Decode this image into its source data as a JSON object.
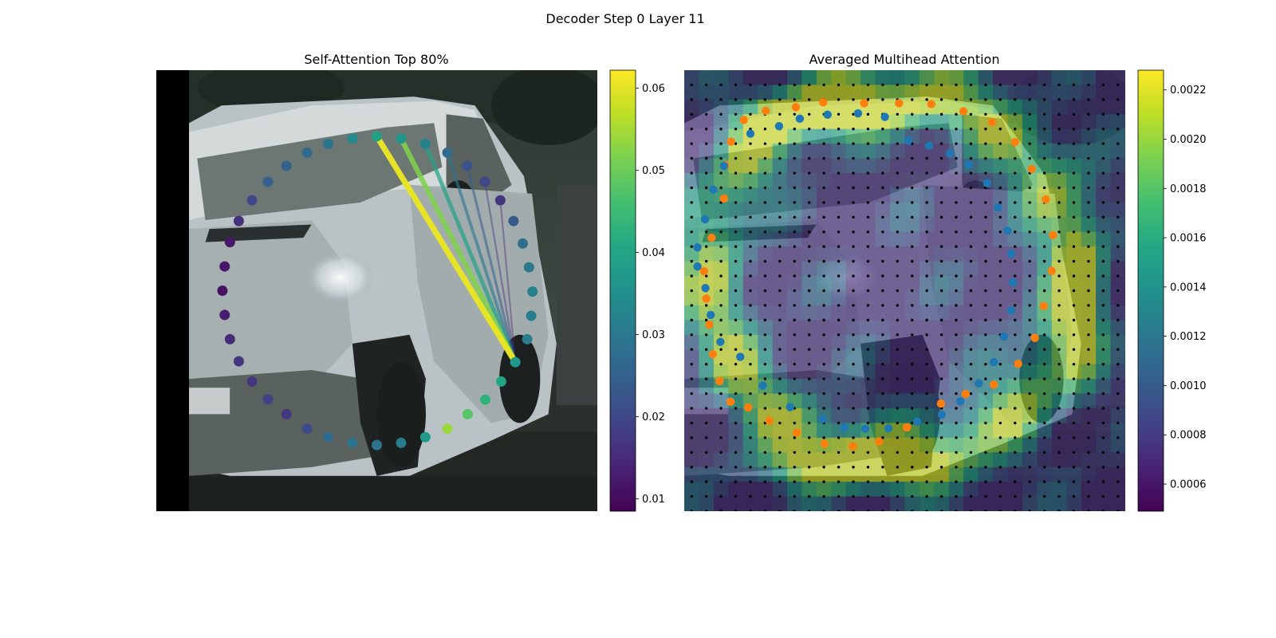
{
  "figure": {
    "suptitle": "Decoder Step 0 Layer 11"
  },
  "colormap": "viridis",
  "colors": {
    "orange_points": "#ff7f0e",
    "blue_points": "#1f77b4",
    "grid_dots": "#000000",
    "letterbox": "#000000"
  },
  "chart_data": [
    {
      "type": "scatter",
      "title": "Self-Attention Top 80%",
      "background": "dashcam photo of a white van, left side black letterbox",
      "axes_visible": false,
      "colorbar": {
        "range": [
          0.0085,
          0.0622
        ],
        "ticks": [
          0.01,
          0.02,
          0.03,
          0.04,
          0.05,
          0.06
        ],
        "tick_labels": [
          "0.01",
          "0.02",
          "0.03",
          "0.04",
          "0.05",
          "0.06"
        ]
      },
      "query_point_index": 13,
      "points": [
        {
          "u": 0.5,
          "v": 0.15,
          "w": 0.039
        },
        {
          "u": 0.555,
          "v": 0.155,
          "w": 0.036
        },
        {
          "u": 0.61,
          "v": 0.167,
          "w": 0.032
        },
        {
          "u": 0.66,
          "v": 0.187,
          "w": 0.027
        },
        {
          "u": 0.705,
          "v": 0.217,
          "w": 0.022
        },
        {
          "u": 0.745,
          "v": 0.253,
          "w": 0.02
        },
        {
          "u": 0.78,
          "v": 0.295,
          "w": 0.017
        },
        {
          "u": 0.81,
          "v": 0.342,
          "w": 0.024
        },
        {
          "u": 0.831,
          "v": 0.393,
          "w": 0.028
        },
        {
          "u": 0.845,
          "v": 0.447,
          "w": 0.03
        },
        {
          "u": 0.853,
          "v": 0.502,
          "w": 0.032
        },
        {
          "u": 0.85,
          "v": 0.557,
          "w": 0.031
        },
        {
          "u": 0.841,
          "v": 0.61,
          "w": 0.031
        },
        {
          "u": 0.814,
          "v": 0.662,
          "w": 0.037
        },
        {
          "u": 0.782,
          "v": 0.706,
          "w": 0.04
        },
        {
          "u": 0.746,
          "v": 0.747,
          "w": 0.043
        },
        {
          "u": 0.706,
          "v": 0.78,
          "w": 0.048
        },
        {
          "u": 0.66,
          "v": 0.813,
          "w": 0.054
        },
        {
          "u": 0.61,
          "v": 0.832,
          "w": 0.037
        },
        {
          "u": 0.555,
          "v": 0.845,
          "w": 0.031
        },
        {
          "u": 0.5,
          "v": 0.85,
          "w": 0.029
        },
        {
          "u": 0.445,
          "v": 0.845,
          "w": 0.029
        },
        {
          "u": 0.39,
          "v": 0.832,
          "w": 0.027
        },
        {
          "u": 0.342,
          "v": 0.813,
          "w": 0.02
        },
        {
          "u": 0.295,
          "v": 0.78,
          "w": 0.017
        },
        {
          "u": 0.253,
          "v": 0.746,
          "w": 0.019
        },
        {
          "u": 0.217,
          "v": 0.706,
          "w": 0.017
        },
        {
          "u": 0.187,
          "v": 0.66,
          "w": 0.017
        },
        {
          "u": 0.167,
          "v": 0.61,
          "w": 0.015
        },
        {
          "u": 0.155,
          "v": 0.555,
          "w": 0.013
        },
        {
          "u": 0.15,
          "v": 0.5,
          "w": 0.011
        },
        {
          "u": 0.155,
          "v": 0.445,
          "w": 0.012
        },
        {
          "u": 0.167,
          "v": 0.39,
          "w": 0.012
        },
        {
          "u": 0.187,
          "v": 0.342,
          "w": 0.016
        },
        {
          "u": 0.217,
          "v": 0.295,
          "w": 0.02
        },
        {
          "u": 0.253,
          "v": 0.253,
          "w": 0.025
        },
        {
          "u": 0.295,
          "v": 0.217,
          "w": 0.025
        },
        {
          "u": 0.342,
          "v": 0.187,
          "w": 0.027
        },
        {
          "u": 0.39,
          "v": 0.167,
          "w": 0.029
        },
        {
          "u": 0.445,
          "v": 0.155,
          "w": 0.034
        }
      ],
      "links": [
        {
          "to": 0,
          "w": 0.0605
        },
        {
          "to": 1,
          "w": 0.052
        },
        {
          "to": 2,
          "w": 0.039
        },
        {
          "to": 3,
          "w": 0.03
        },
        {
          "to": 4,
          "w": 0.024
        },
        {
          "to": 5,
          "w": 0.016
        },
        {
          "to": 6,
          "w": 0.014
        }
      ]
    },
    {
      "type": "heatmap",
      "title": "Averaged Multihead Attention",
      "background": "same dashcam photo of a white van under a semi-transparent heatmap",
      "axes_visible": false,
      "grid_size": [
        30,
        30
      ],
      "colorbar": {
        "range": [
          0.00049,
          0.00228
        ],
        "ticks": [
          0.0006,
          0.0008,
          0.001,
          0.0012,
          0.0014,
          0.0016,
          0.0018,
          0.002,
          0.0022
        ],
        "tick_labels": [
          "0.0006",
          "0.0008",
          "0.0010",
          "0.0012",
          "0.0014",
          "0.0016",
          "0.0018",
          "0.0020",
          "0.0022"
        ]
      },
      "series": [
        {
          "color": "#ff7f0e",
          "points": [
            [
              0.487,
              0.075
            ],
            [
              0.56,
              0.077
            ],
            [
              0.633,
              0.093
            ],
            [
              0.698,
              0.118
            ],
            [
              0.75,
              0.163
            ],
            [
              0.788,
              0.224
            ],
            [
              0.82,
              0.293
            ],
            [
              0.836,
              0.374
            ],
            [
              0.833,
              0.455
            ],
            [
              0.815,
              0.535
            ],
            [
              0.795,
              0.607
            ],
            [
              0.757,
              0.666
            ],
            [
              0.702,
              0.713
            ],
            [
              0.638,
              0.734
            ],
            [
              0.582,
              0.756
            ],
            [
              0.505,
              0.81
            ],
            [
              0.442,
              0.842
            ],
            [
              0.382,
              0.853
            ],
            [
              0.318,
              0.847
            ],
            [
              0.255,
              0.822
            ],
            [
              0.193,
              0.795
            ],
            [
              0.145,
              0.765
            ],
            [
              0.105,
              0.752
            ],
            [
              0.08,
              0.705
            ],
            [
              0.065,
              0.644
            ],
            [
              0.057,
              0.577
            ],
            [
              0.05,
              0.518
            ],
            [
              0.045,
              0.456
            ],
            [
              0.062,
              0.38
            ],
            [
              0.09,
              0.291
            ],
            [
              0.093,
              0.215
            ],
            [
              0.106,
              0.162
            ],
            [
              0.135,
              0.113
            ],
            [
              0.185,
              0.092
            ],
            [
              0.253,
              0.084
            ],
            [
              0.315,
              0.073
            ],
            [
              0.408,
              0.075
            ]
          ]
        },
        {
          "color": "#1f77b4",
          "points": [
            [
              0.508,
              0.16
            ],
            [
              0.555,
              0.171
            ],
            [
              0.602,
              0.189
            ],
            [
              0.645,
              0.214
            ],
            [
              0.687,
              0.256
            ],
            [
              0.711,
              0.311
            ],
            [
              0.733,
              0.364
            ],
            [
              0.741,
              0.416
            ],
            [
              0.745,
              0.481
            ],
            [
              0.741,
              0.545
            ],
            [
              0.725,
              0.604
            ],
            [
              0.702,
              0.662
            ],
            [
              0.668,
              0.71
            ],
            [
              0.626,
              0.751
            ],
            [
              0.584,
              0.781
            ],
            [
              0.528,
              0.797
            ],
            [
              0.463,
              0.812
            ],
            [
              0.41,
              0.813
            ],
            [
              0.363,
              0.81
            ],
            [
              0.314,
              0.791
            ],
            [
              0.24,
              0.764
            ],
            [
              0.178,
              0.715
            ],
            [
              0.127,
              0.65
            ],
            [
              0.082,
              0.616
            ],
            [
              0.06,
              0.555
            ],
            [
              0.048,
              0.494
            ],
            [
              0.03,
              0.445
            ],
            [
              0.03,
              0.402
            ],
            [
              0.047,
              0.338
            ],
            [
              0.066,
              0.271
            ],
            [
              0.09,
              0.217
            ],
            [
              0.15,
              0.144
            ],
            [
              0.215,
              0.127
            ],
            [
              0.262,
              0.11
            ],
            [
              0.325,
              0.101
            ],
            [
              0.394,
              0.098
            ],
            [
              0.455,
              0.106
            ]
          ]
        }
      ]
    }
  ]
}
